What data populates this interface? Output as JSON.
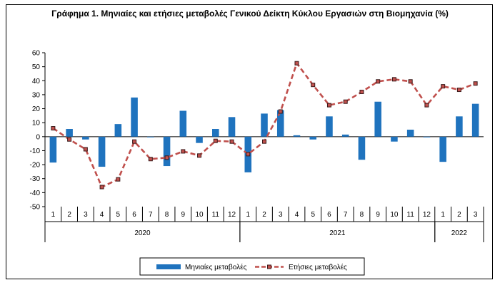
{
  "chart_data": {
    "type": "bar+line",
    "title": "Γράφημα 1. Μηνιαίες και ετήσιες μεταβολές  Γενικού Δείκτη Κύκλου Εργασιών στη Βιομηχανία (%)",
    "categories": [
      "1",
      "2",
      "3",
      "4",
      "5",
      "6",
      "7",
      "8",
      "9",
      "10",
      "11",
      "12",
      "1",
      "2",
      "3",
      "4",
      "5",
      "6",
      "7",
      "8",
      "9",
      "10",
      "11",
      "12",
      "1",
      "2",
      "3"
    ],
    "years": [
      {
        "label": "2020",
        "start": 0,
        "count": 12
      },
      {
        "label": "2021",
        "start": 12,
        "count": 12
      },
      {
        "label": "2022",
        "start": 24,
        "count": 3
      }
    ],
    "series": [
      {
        "name": "Μηνιαίες μεταβολές",
        "kind": "bar",
        "color": "#1f73be",
        "values": [
          -18.5,
          5.5,
          -2.0,
          -21.5,
          9.0,
          28.0,
          -0.5,
          -21.0,
          18.5,
          -4.5,
          5.5,
          14.0,
          -25.5,
          16.5,
          19.0,
          1.0,
          -2.0,
          14.5,
          1.5,
          -16.5,
          25.0,
          -3.5,
          5.0,
          -0.5,
          -18.0,
          14.5,
          23.5
        ]
      },
      {
        "name": "Ετήσιες μεταβολές",
        "kind": "line",
        "color": "#c0504d",
        "values": [
          6.0,
          -2.0,
          -9.0,
          -36.0,
          -30.5,
          -3.5,
          -16.0,
          -15.0,
          -10.5,
          -13.5,
          -3.0,
          -3.5,
          -12.5,
          -3.5,
          18.0,
          52.5,
          37.0,
          22.5,
          25.0,
          32.0,
          39.5,
          41.0,
          39.5,
          22.5,
          36.0,
          33.5,
          38.0
        ]
      }
    ],
    "ylim": [
      -50,
      60
    ],
    "yticks": [
      60,
      50,
      40,
      30,
      20,
      10,
      0,
      -10,
      -20,
      -30,
      -40,
      -50
    ],
    "xlabel": "",
    "ylabel": "",
    "grid": false,
    "legend_position": "bottom"
  }
}
